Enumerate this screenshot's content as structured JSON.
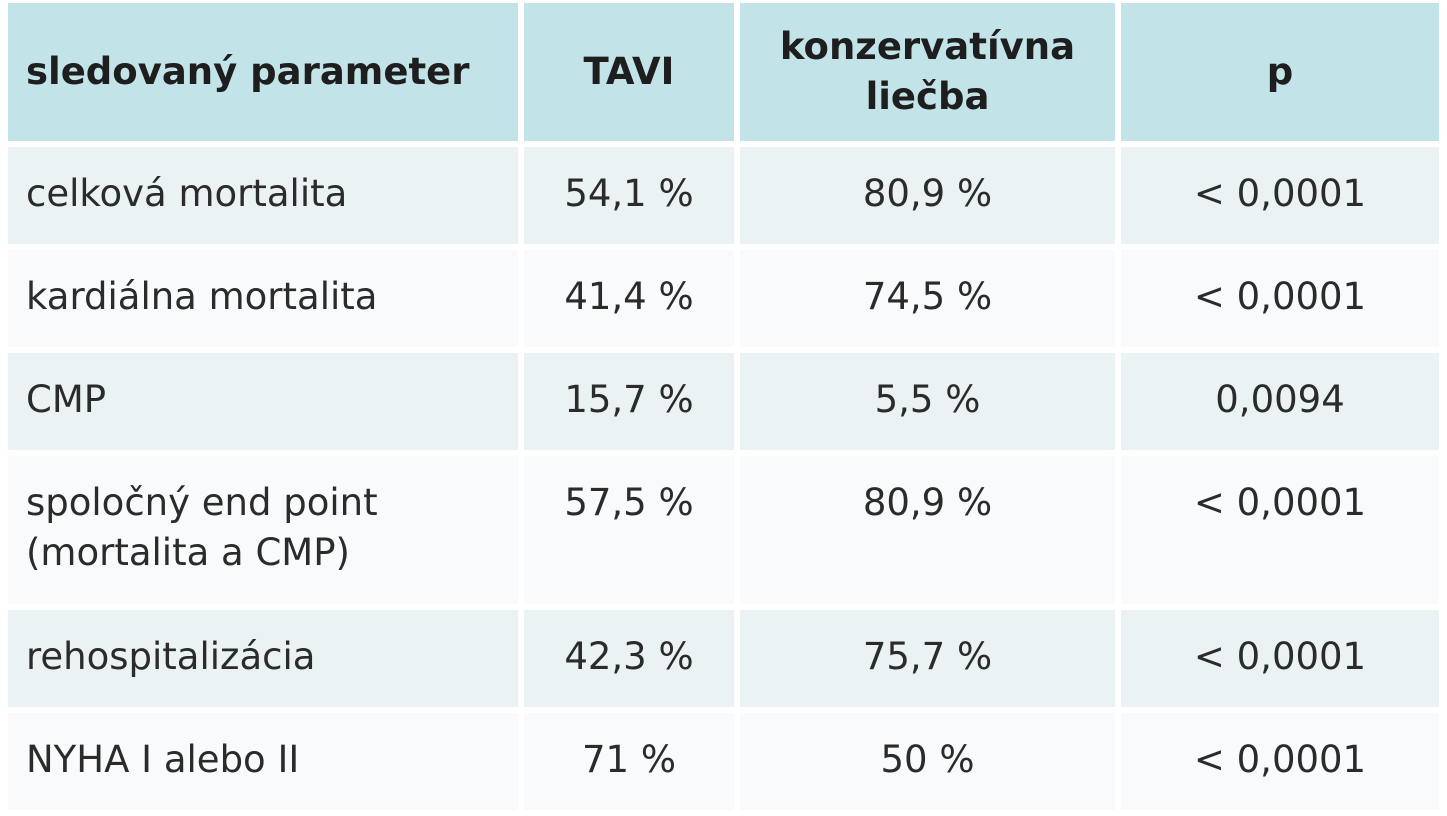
{
  "table": {
    "headers": [
      {
        "text": "sledovaný parameter"
      },
      {
        "text": "TAVI"
      },
      {
        "line1": "konzervatívna",
        "line2": "liečba"
      },
      {
        "text": "p"
      }
    ],
    "rows": [
      {
        "label": [
          "celková mortalita"
        ],
        "tavi": "54,1 %",
        "conservative": "80,9 %",
        "p": "< 0,0001"
      },
      {
        "label": [
          "kardiálna mortalita"
        ],
        "tavi": "41,4 %",
        "conservative": "74,5 %",
        "p": "< 0,0001"
      },
      {
        "label": [
          "CMP"
        ],
        "tavi": "15,7 %",
        "conservative": "5,5 %",
        "p": "0,0094"
      },
      {
        "label": [
          "spoločný end point",
          "(mortalita a CMP)"
        ],
        "tavi": "57,5 %",
        "conservative": "80,9 %",
        "p": "< 0,0001"
      },
      {
        "label": [
          "rehospitalizácia"
        ],
        "tavi": "42,3 %",
        "conservative": "75,7 %",
        "p": "< 0,0001"
      },
      {
        "label": [
          "NYHA I alebo II"
        ],
        "tavi": "71 %",
        "conservative": "50 %",
        "p": "< 0,0001"
      }
    ]
  },
  "colors": {
    "header_bg": "#c2e4e9",
    "row_even_bg": "#eaf2f4",
    "row_odd_bg": "#f8fafb",
    "text": "#2b2b2b"
  }
}
